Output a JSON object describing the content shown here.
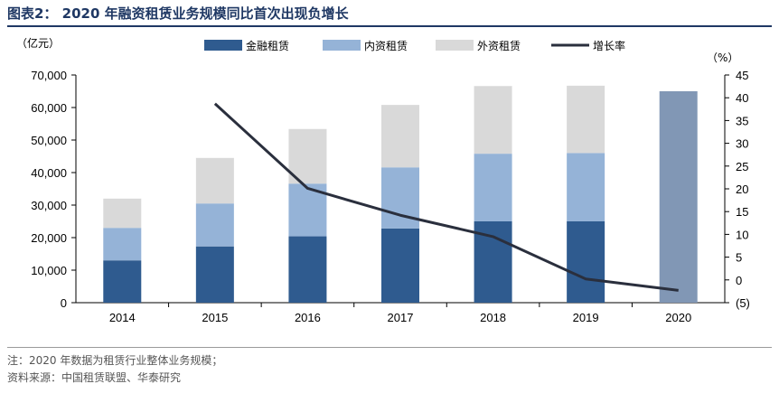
{
  "header": {
    "title": "图表2：  2020 年融资租赁业务规模同比首次出现负增长"
  },
  "footer": {
    "note": "注：2020 年数据为租赁行业整体业务规模；",
    "source": "资料来源：中国租赁联盟、华泰研究"
  },
  "chart_data": {
    "type": "bar",
    "stacked": true,
    "categories": [
      "2014",
      "2015",
      "2016",
      "2017",
      "2018",
      "2019",
      "2020"
    ],
    "series": [
      {
        "name": "金融租赁",
        "color": "#2f5b8f",
        "values": [
          13000,
          17300,
          20400,
          22800,
          25000,
          25000,
          null
        ]
      },
      {
        "name": "内资租赁",
        "color": "#95b3d7",
        "values": [
          10000,
          13200,
          16200,
          18800,
          20800,
          21000,
          null
        ]
      },
      {
        "name": "外资租赁",
        "color": "#d9d9d9",
        "values": [
          9000,
          14000,
          16800,
          19200,
          20800,
          20700,
          null
        ]
      }
    ],
    "total_2020": {
      "value": 65000,
      "color": "#8197b5"
    },
    "line": {
      "name": "增长率",
      "color": "#2a2f3d",
      "axis": "right",
      "x": [
        "2015",
        "2016",
        "2017",
        "2018",
        "2019",
        "2020"
      ],
      "values": [
        38.7,
        20.1,
        14.2,
        9.5,
        0.2,
        -2.3
      ]
    },
    "left_axis": {
      "unit_label": "（亿元）",
      "min": 0,
      "max": 70000,
      "ticks": [
        "0",
        "10,000",
        "20,000",
        "30,000",
        "40,000",
        "50,000",
        "60,000",
        "70,000"
      ]
    },
    "right_axis": {
      "unit_label": "（%）",
      "min": -5,
      "max": 45,
      "ticks": [
        "(5)",
        "0",
        "5",
        "10",
        "15",
        "20",
        "25",
        "30",
        "35",
        "40",
        "45"
      ]
    },
    "legend_position": "top-center"
  }
}
